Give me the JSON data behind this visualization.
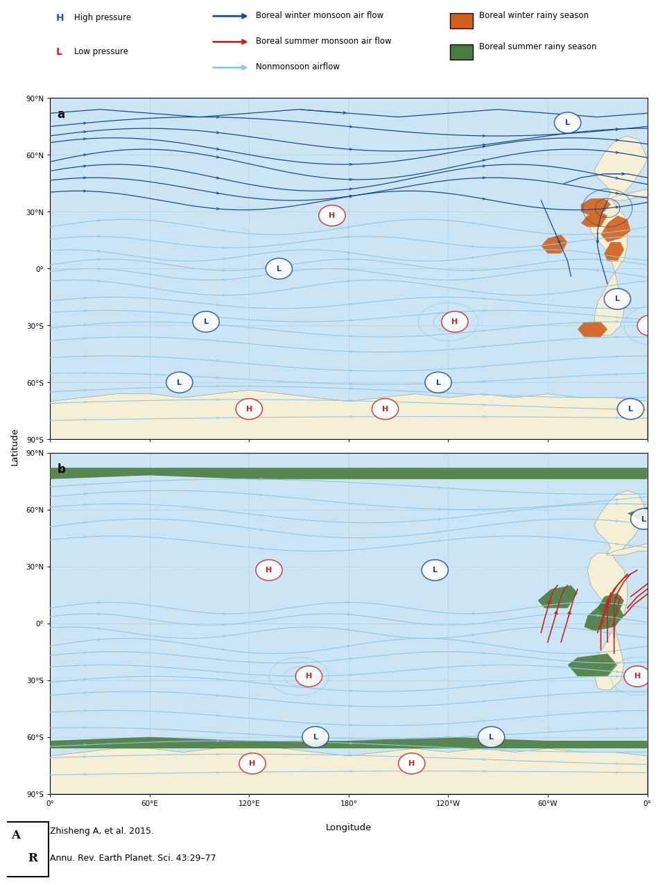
{
  "fig_bg": "#ffffff",
  "ocean_color": "#cce5f5",
  "land_color": "#f5efd5",
  "orange_color": "#d2601a",
  "green_color": "#4a7c3f",
  "blue_dark": "#1a4a8a",
  "blue_med": "#2060b0",
  "blue_light": "#60a0d0",
  "cyan_light": "#90c8e8",
  "red_color": "#cc2222",
  "grid_color": "#9ab8d0",
  "citation_line1": "Zhisheng A, et al. 2015.",
  "citation_line2": "Annu. Rev. Earth Planet. Sci. 43:29–77",
  "lon_labels": [
    "0°",
    "60°E",
    "120°E",
    "180°",
    "120°W",
    "60°W",
    "0°"
  ],
  "lat_labels_a": [
    "90°N",
    "60°N",
    "30°N",
    "0°",
    "30°S",
    "60°S",
    "90°S"
  ],
  "lat_labels_b": [
    "90°N",
    "60°N",
    "30°N",
    "0°",
    "30°S",
    "60°S",
    "90°S"
  ]
}
